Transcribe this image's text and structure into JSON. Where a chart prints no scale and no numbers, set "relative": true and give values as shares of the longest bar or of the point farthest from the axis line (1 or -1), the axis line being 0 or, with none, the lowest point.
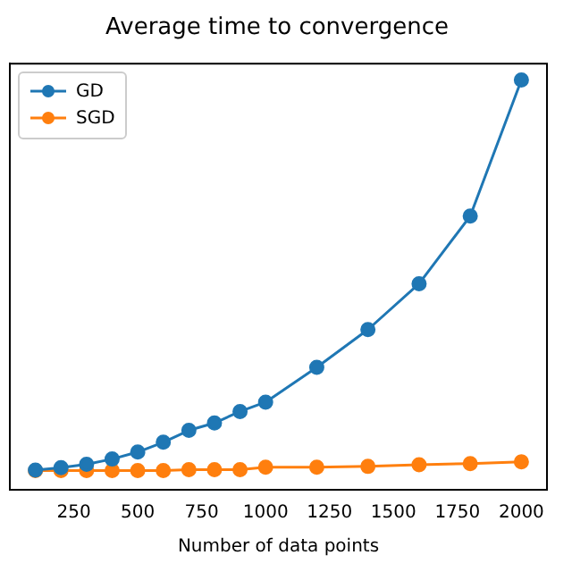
{
  "chart_data": {
    "type": "line",
    "title": "Average time to convergence",
    "xlabel": "Number of data points",
    "relative": true,
    "marker": "circle",
    "legend": "top left",
    "grid": false,
    "x": [
      100,
      200,
      300,
      400,
      500,
      600,
      700,
      800,
      900,
      1000,
      1200,
      1400,
      1600,
      1800,
      2000
    ],
    "xlim": [
      0,
      2100
    ],
    "xticks": [
      250,
      500,
      750,
      1000,
      1250,
      1500,
      1750,
      2000
    ],
    "series": [
      {
        "name": "GD",
        "color": "#1f77b4",
        "values": [
          0.048,
          0.054,
          0.062,
          0.075,
          0.092,
          0.116,
          0.145,
          0.163,
          0.191,
          0.214,
          0.299,
          0.391,
          0.503,
          0.668,
          1
        ]
      },
      {
        "name": "SGD",
        "color": "#ff7f0e",
        "values": [
          0.047,
          0.047,
          0.047,
          0.047,
          0.047,
          0.047,
          0.049,
          0.049,
          0.049,
          0.055,
          0.055,
          0.057,
          0.061,
          0.064,
          0.068
        ]
      }
    ]
  }
}
